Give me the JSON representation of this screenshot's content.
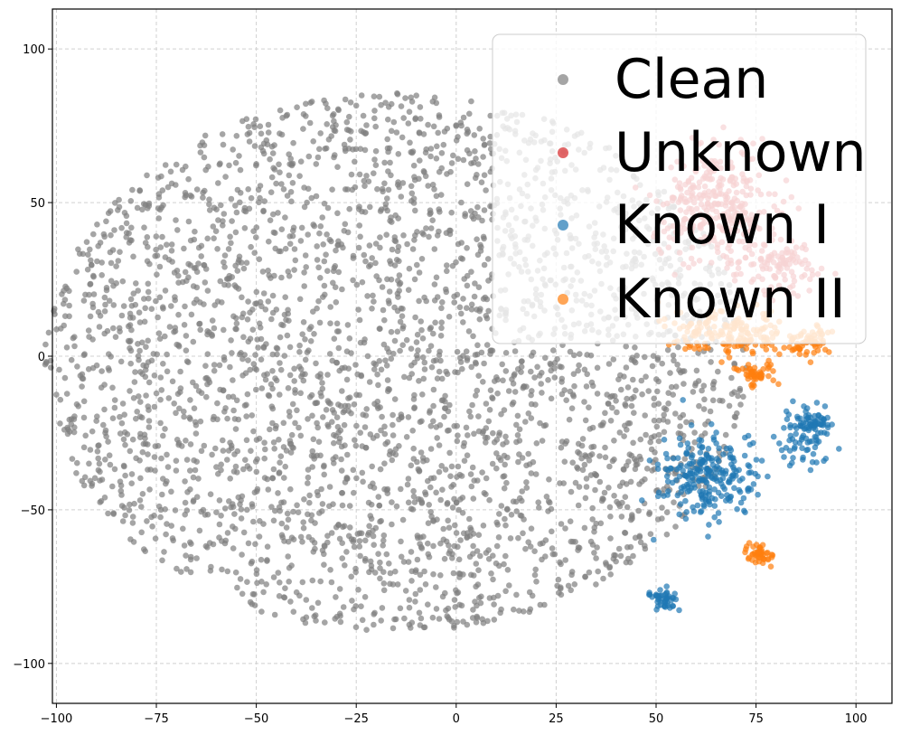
{
  "chart_data": {
    "type": "scatter",
    "title": "",
    "xlabel": "",
    "ylabel": "",
    "xlim": [
      -101,
      109
    ],
    "ylim": [
      -113,
      113
    ],
    "xticks": [
      -100,
      -75,
      -50,
      -25,
      0,
      25,
      50,
      75,
      100
    ],
    "yticks": [
      -100,
      -50,
      0,
      50,
      100
    ],
    "xtick_labels": [
      "−100",
      "−75",
      "−50",
      "−25",
      "0",
      "25",
      "50",
      "75",
      "100"
    ],
    "ytick_labels": [
      "−100",
      "−50",
      "0",
      "50",
      "100"
    ],
    "grid": true,
    "legend_position": "top-right",
    "series": [
      {
        "name": "Clean",
        "color": "#7f7f7f",
        "clusters": [
          {
            "shape": "disc",
            "center": [
              -15,
              -2
            ],
            "radius": 88,
            "count": 3200
          }
        ]
      },
      {
        "name": "Unknown",
        "color": "#d62728",
        "clusters": [
          {
            "shape": "blob",
            "center": [
              65,
              50
            ],
            "spread": [
              12,
              16
            ],
            "count": 300
          },
          {
            "shape": "blob",
            "center": [
              80,
              30
            ],
            "spread": [
              8,
              8
            ],
            "count": 110
          }
        ]
      },
      {
        "name": "Known I",
        "color": "#1f77b4",
        "clusters": [
          {
            "shape": "blob",
            "center": [
              63,
              -38
            ],
            "spread": [
              10,
              12
            ],
            "count": 240
          },
          {
            "shape": "blob",
            "center": [
              88,
              -25
            ],
            "spread": [
              6,
              8
            ],
            "count": 110
          },
          {
            "shape": "blob",
            "center": [
              52,
              -79
            ],
            "spread": [
              4,
              3
            ],
            "count": 45
          }
        ]
      },
      {
        "name": "Known II",
        "color": "#ff7f0e",
        "clusters": [
          {
            "shape": "blob",
            "center": [
              68,
              8
            ],
            "spread": [
              12,
              6
            ],
            "count": 170
          },
          {
            "shape": "blob",
            "center": [
              88,
              5
            ],
            "spread": [
              5,
              4
            ],
            "count": 60
          },
          {
            "shape": "blob",
            "center": [
              75,
              -6
            ],
            "spread": [
              4,
              4
            ],
            "count": 50
          },
          {
            "shape": "blob",
            "center": [
              76,
              -65
            ],
            "spread": [
              3,
              3
            ],
            "count": 45
          }
        ]
      }
    ]
  }
}
